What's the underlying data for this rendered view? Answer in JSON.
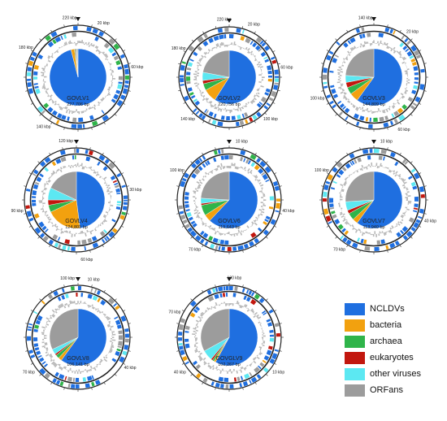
{
  "legend": {
    "items": [
      {
        "label": "NCLDVs",
        "color": "#1f6fe0"
      },
      {
        "label": "bacteria",
        "color": "#f2a10f"
      },
      {
        "label": "archaea",
        "color": "#2fb44a"
      },
      {
        "label": "eukaryotes",
        "color": "#c2170e"
      },
      {
        "label": "other viruses",
        "color": "#5ce8f2"
      },
      {
        "label": "ORFans",
        "color": "#9c9c9c"
      }
    ]
  },
  "colors": {
    "ncldv": "#1f6fe0",
    "bacteria": "#f2a10f",
    "archaea": "#2fb44a",
    "eukaryotes": "#c2170e",
    "other_viruses": "#5ce8f2",
    "orfans": "#9c9c9c",
    "ring": "#222222",
    "gc": "#b8b8b8",
    "tick": "#333333"
  },
  "genome_circles": [
    {
      "name": "GOVLV1",
      "size": "227,706 bp",
      "pie": [
        0.96,
        0.02,
        0.005,
        0.005,
        0.005,
        0.005
      ],
      "tick_labels": [
        "220 kbp",
        "20 kbp",
        "60 kbp",
        "140 kbp",
        "180 kbp"
      ]
    },
    {
      "name": "GOVLV2",
      "size": "220,756 bp",
      "pie": [
        0.59,
        0.08,
        0.04,
        0.02,
        0.05,
        0.22
      ],
      "tick_labels": [
        "220 kbp",
        "20 kbp",
        "60 kbp",
        "100 kbp",
        "140 kbp",
        "180 kbp"
      ]
    },
    {
      "name": "GOVLV3",
      "size": "144,809 bp",
      "pie": [
        0.6,
        0.05,
        0.04,
        0.03,
        0.04,
        0.24
      ],
      "tick_labels": [
        "140 kbp",
        "20 kbp",
        "60 kbp",
        "100 kbp"
      ]
    },
    {
      "name": "GOVLV4",
      "size": "124,803 bp",
      "pie": [
        0.48,
        0.2,
        0.04,
        0.03,
        0.07,
        0.18
      ],
      "tick_labels": [
        "120 kbp",
        "30 kbp",
        "60 kbp",
        "90 kbp"
      ]
    },
    {
      "name": "GOVLV6",
      "size": "119,643 bp",
      "pie": [
        0.62,
        0.04,
        0.06,
        0.01,
        0.03,
        0.24
      ],
      "tick_labels": [
        "10 kbp",
        "40 kbp",
        "70 kbp",
        "100 kbp"
      ]
    },
    {
      "name": "GOVLV7",
      "size": "113,940 bp",
      "pie": [
        0.6,
        0.03,
        0.04,
        0.02,
        0.05,
        0.26
      ],
      "tick_labels": [
        "10 kbp",
        "40 kbp",
        "70 kbp",
        "100 kbp"
      ]
    },
    {
      "name": "GOVLV8",
      "size": "106,141 bp",
      "pie": [
        0.6,
        0.02,
        0.02,
        0.01,
        0.03,
        0.32
      ],
      "tick_labels": [
        "100 kbp",
        "10 kbp",
        "40 kbp",
        "70 kbp"
      ]
    },
    {
      "name": "GOVGLV9",
      "size": "102,267 bp",
      "pie": [
        0.58,
        0.01,
        0.01,
        0.01,
        0.06,
        0.33
      ],
      "tick_labels": [
        "100 kbp",
        "10 kbp",
        "40 kbp",
        "70 kbp"
      ]
    }
  ]
}
